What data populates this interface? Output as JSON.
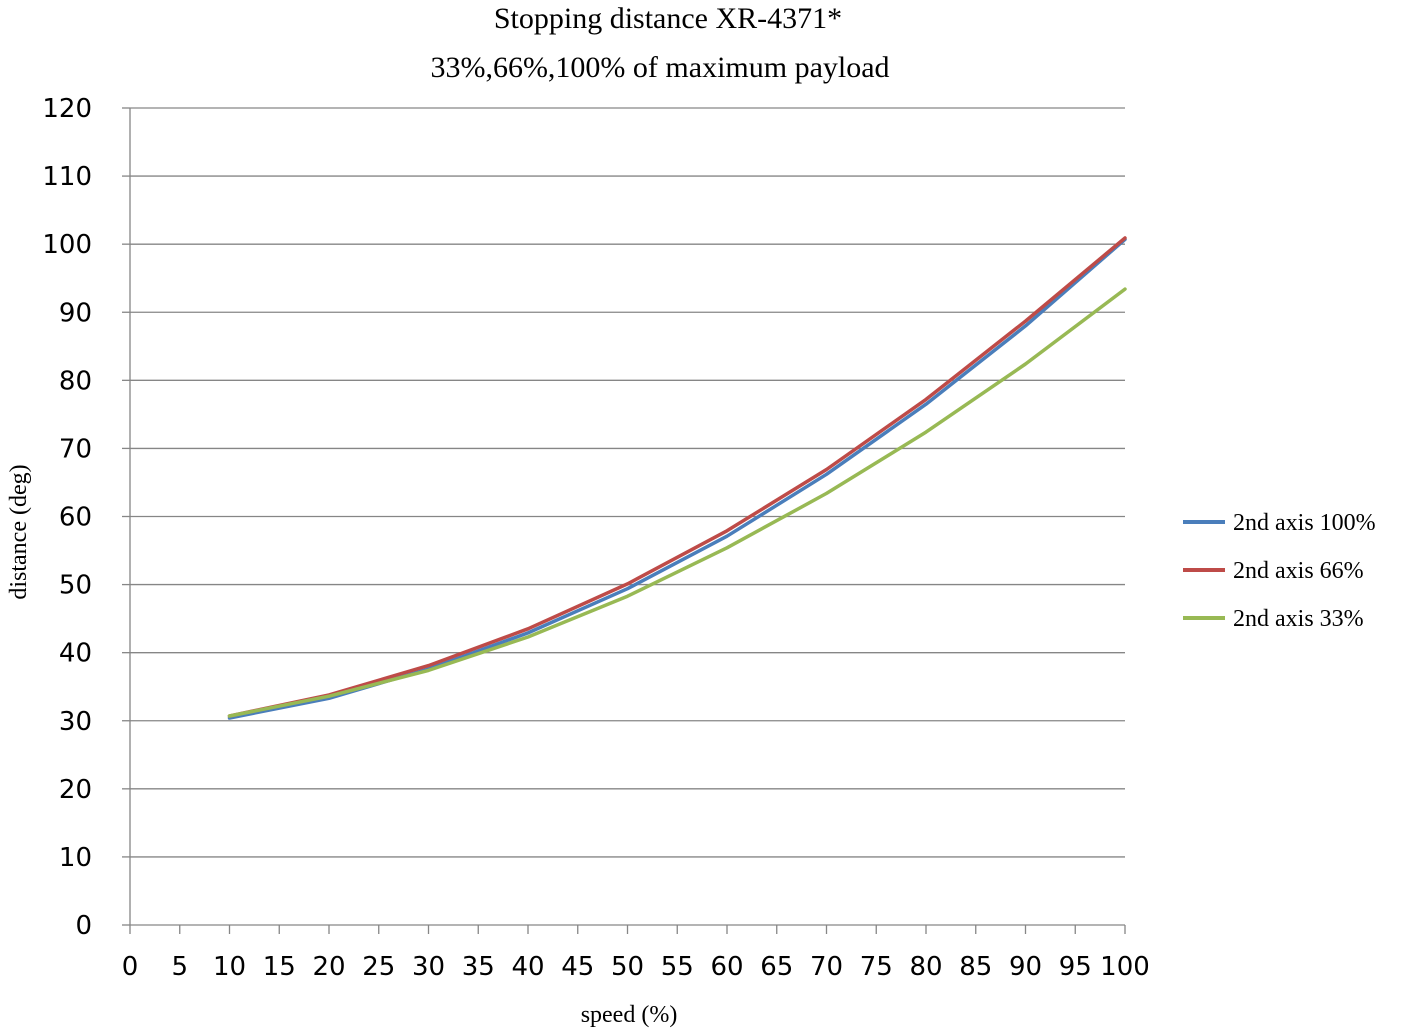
{
  "chart_data": {
    "type": "line",
    "title_line1": "Stopping distance   XR-4371*",
    "title_line2": "33%,66%,100% of maximum payload",
    "xlabel": "speed (%)",
    "ylabel": "distance (deg)",
    "xlim": [
      0,
      100
    ],
    "ylim": [
      0,
      120
    ],
    "x_ticks": [
      0,
      5,
      10,
      15,
      20,
      25,
      30,
      35,
      40,
      45,
      50,
      55,
      60,
      65,
      70,
      75,
      80,
      85,
      90,
      95,
      100
    ],
    "y_ticks": [
      0,
      10,
      20,
      30,
      40,
      50,
      60,
      70,
      80,
      90,
      100,
      110,
      120
    ],
    "grid": true,
    "legend_position": "right",
    "x": [
      10,
      20,
      30,
      40,
      50,
      60,
      70,
      80,
      90,
      100
    ],
    "series": [
      {
        "name": "2nd axis 100%",
        "color": "#4a7ebb",
        "values": [
          30.4,
          33.3,
          37.6,
          42.9,
          49.4,
          57.1,
          66.2,
          76.5,
          88.0,
          100.7
        ]
      },
      {
        "name": "2nd axis 66%",
        "color": "#be4b48",
        "values": [
          30.7,
          33.8,
          38.1,
          43.5,
          50.1,
          57.9,
          66.9,
          77.2,
          88.7,
          100.9
        ]
      },
      {
        "name": "2nd axis 33%",
        "color": "#98b954",
        "values": [
          30.7,
          33.6,
          37.4,
          42.3,
          48.3,
          55.4,
          63.4,
          72.4,
          82.4,
          93.4
        ]
      }
    ]
  }
}
